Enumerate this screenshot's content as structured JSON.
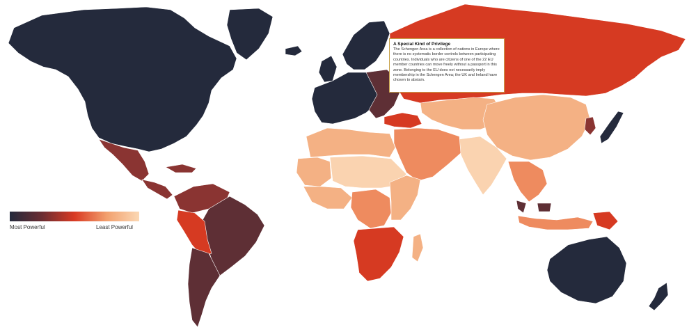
{
  "legend": {
    "min_label": "Most Powerful",
    "max_label": "Least Powerful",
    "gradient_colors": [
      "#242a3c",
      "#6b2d32",
      "#d93a23",
      "#f2a06e",
      "#fbd8b4"
    ]
  },
  "info_box": {
    "title": "A Special Kind of Privilege",
    "body": "The Schengen Area is a collection of nations in Europe where there is no systematic border controls between participating countries. Individuals who are citizens of one of the 22 EU member countries can move freely without a passport in this zone. Belonging to the EU does not necessarily imply membership in the Schengen Area; the UK and Ireland have chosen to abstain.",
    "border_color": "#c8a24a"
  },
  "palette": {
    "most_powerful": "#242a3c",
    "strong": "#5e2f35",
    "upper_middle": "#8a3432",
    "middle": "#d63a22",
    "lower_middle": "#ee8b5f",
    "weak": "#f4b184",
    "least_powerful": "#fad3b0"
  },
  "regions": [
    {
      "name": "north-america",
      "tier": "most_powerful"
    },
    {
      "name": "greenland",
      "tier": "most_powerful"
    },
    {
      "name": "mexico",
      "tier": "upper_middle"
    },
    {
      "name": "central-america",
      "tier": "upper_middle"
    },
    {
      "name": "caribbean",
      "tier": "upper_middle"
    },
    {
      "name": "brazil",
      "tier": "strong"
    },
    {
      "name": "colombia-venezuela",
      "tier": "upper_middle"
    },
    {
      "name": "peru-bolivia",
      "tier": "middle"
    },
    {
      "name": "southern-cone",
      "tier": "strong"
    },
    {
      "name": "western-europe",
      "tier": "most_powerful"
    },
    {
      "name": "scandinavia",
      "tier": "most_powerful"
    },
    {
      "name": "eastern-europe",
      "tier": "strong"
    },
    {
      "name": "turkey",
      "tier": "middle"
    },
    {
      "name": "russia",
      "tier": "middle"
    },
    {
      "name": "central-asia",
      "tier": "weak"
    },
    {
      "name": "middle-east",
      "tier": "lower_middle"
    },
    {
      "name": "north-africa",
      "tier": "weak"
    },
    {
      "name": "sahara-west",
      "tier": "weak"
    },
    {
      "name": "sahel",
      "tier": "least_powerful"
    },
    {
      "name": "west-africa",
      "tier": "weak"
    },
    {
      "name": "central-africa",
      "tier": "lower_middle"
    },
    {
      "name": "east-africa",
      "tier": "weak"
    },
    {
      "name": "southern-africa",
      "tier": "middle"
    },
    {
      "name": "madagascar",
      "tier": "weak"
    },
    {
      "name": "china",
      "tier": "weak"
    },
    {
      "name": "india",
      "tier": "least_powerful"
    },
    {
      "name": "southeast-asia",
      "tier": "lower_middle"
    },
    {
      "name": "malaysia",
      "tier": "strong"
    },
    {
      "name": "indonesia",
      "tier": "lower_middle"
    },
    {
      "name": "papua",
      "tier": "middle"
    },
    {
      "name": "japan",
      "tier": "most_powerful"
    },
    {
      "name": "korea",
      "tier": "upper_middle"
    },
    {
      "name": "australia",
      "tier": "most_powerful"
    },
    {
      "name": "new-zealand",
      "tier": "most_powerful"
    },
    {
      "name": "iceland",
      "tier": "most_powerful"
    },
    {
      "name": "uk-ireland",
      "tier": "most_powerful"
    }
  ]
}
